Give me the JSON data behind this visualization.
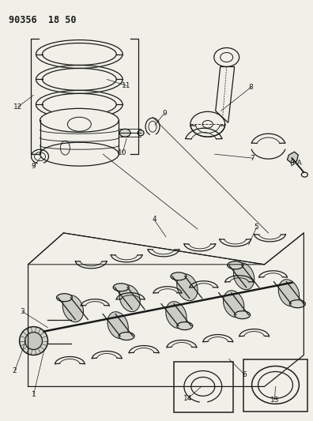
{
  "bg": "#f0efe8",
  "lc": "#1a1a1a",
  "title": "90356  18 50",
  "fig_w": 3.96,
  "fig_h": 5.33,
  "dpi": 100
}
